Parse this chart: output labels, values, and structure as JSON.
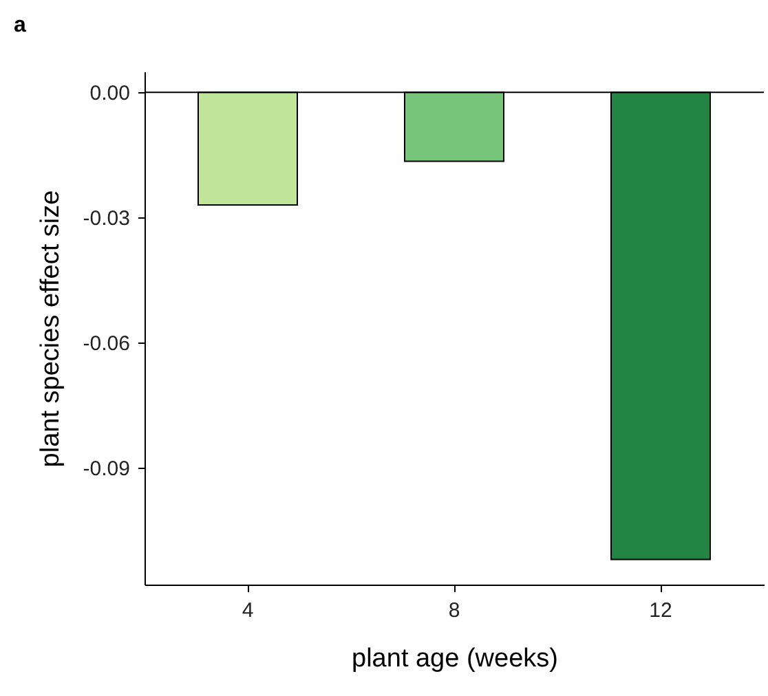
{
  "chart_data": {
    "type": "bar",
    "title": "a",
    "xlabel": "plant age (weeks)",
    "ylabel": "plant species effect size",
    "categories": [
      "4",
      "8",
      "12"
    ],
    "values": [
      -0.027,
      -0.0165,
      -0.112
    ],
    "colors": [
      "#c2e699",
      "#78c679",
      "#238443"
    ],
    "ylim": [
      -0.118,
      0.005
    ],
    "yticks": [
      {
        "value": 0,
        "label": "0.00"
      },
      {
        "value": -0.03,
        "label": "-0.03"
      },
      {
        "value": -0.06,
        "label": "-0.06"
      },
      {
        "value": -0.09,
        "label": "-0.09"
      }
    ],
    "ref_lines": [
      {
        "axis": "y",
        "value": 0
      }
    ],
    "grid": false
  }
}
